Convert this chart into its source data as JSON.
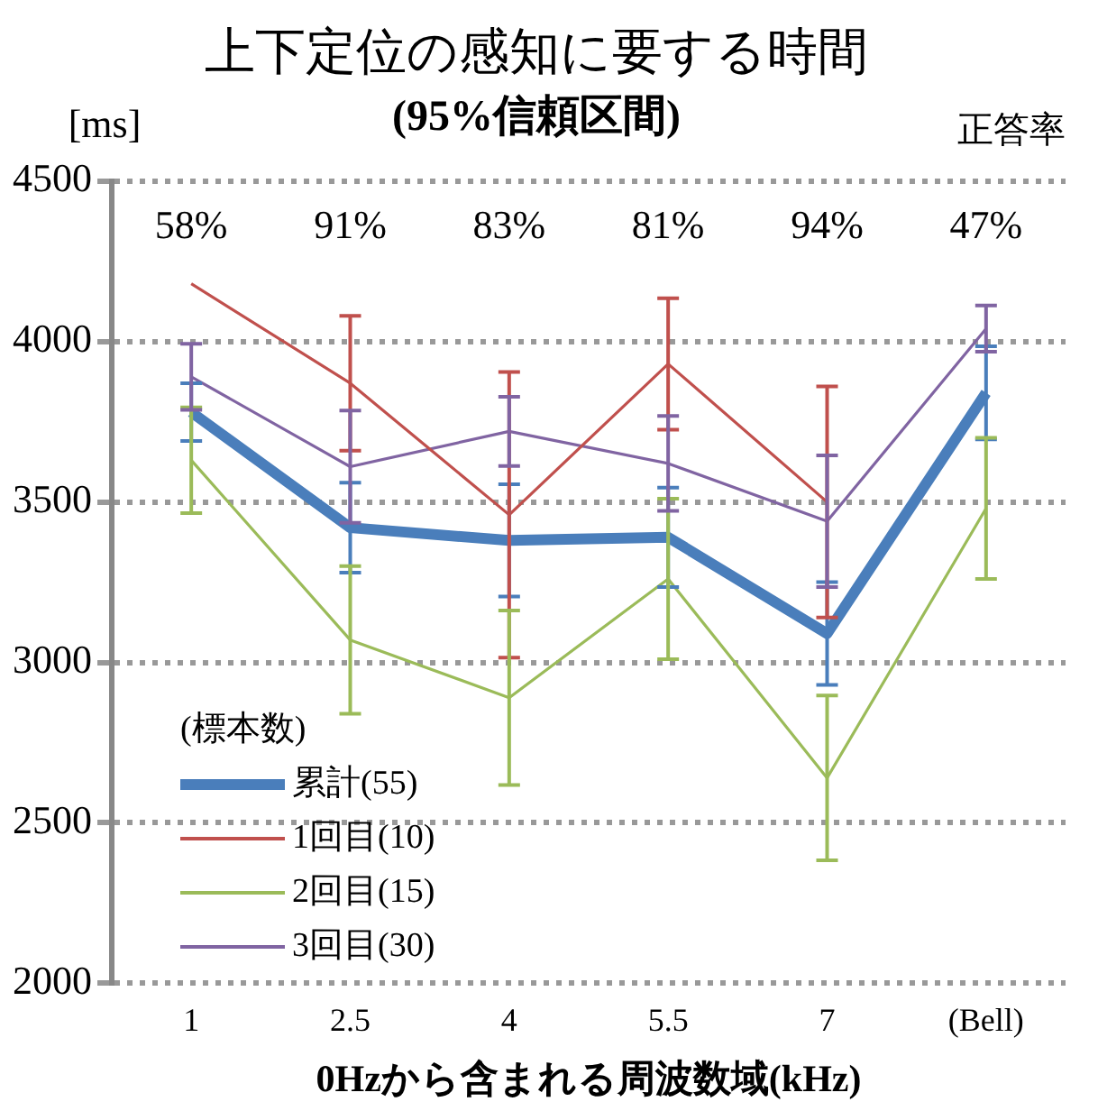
{
  "chart_data": {
    "type": "line",
    "title": "上下定位の感知に要する時間",
    "subtitle": "(95%信頼区間)",
    "ylabel": "[ms]",
    "xlabel": "0Hzから含まれる周波数域(kHz)",
    "legend_title": "(標本数)",
    "categories": [
      "1",
      "2.5",
      "4",
      "5.5",
      "7",
      "(Bell)"
    ],
    "series": [
      {
        "name": "累計(55)",
        "color": "#4a7ebb",
        "values": [
          3780,
          3420,
          3380,
          3390,
          3090,
          3840
        ],
        "errors": [
          90,
          140,
          175,
          155,
          160,
          145
        ]
      },
      {
        "name": "1回目(10)",
        "color": "#c0504d",
        "values": [
          4180,
          3870,
          3460,
          3930,
          3500,
          null
        ],
        "errors": [
          null,
          210,
          445,
          205,
          360,
          null
        ]
      },
      {
        "name": "2回目(15)",
        "color": "#9bbb59",
        "values": [
          3630,
          3070,
          2890,
          3260,
          2640,
          3480
        ],
        "errors": [
          165,
          230,
          272,
          250,
          257,
          220
        ]
      },
      {
        "name": "3回目(30)",
        "color": "#8064a2",
        "values": [
          3890,
          3610,
          3720,
          3620,
          3440,
          4040
        ],
        "errors": [
          103,
          175,
          108,
          148,
          205,
          72
        ]
      }
    ],
    "annotations": [
      "正答率",
      "58%",
      "91%",
      "83%",
      "81%",
      "94%",
      "47%"
    ],
    "ylim": [
      2000,
      4500
    ],
    "yticks": [
      2000,
      2500,
      3000,
      3500,
      4000,
      4500
    ],
    "grid": "y",
    "legend": "bottom left",
    "marker": "none",
    "line_style": "solid"
  }
}
